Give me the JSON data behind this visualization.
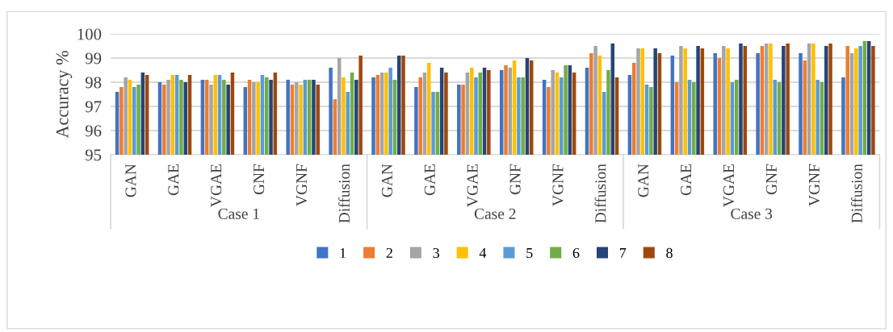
{
  "chart_data": {
    "type": "bar",
    "ylabel": "Accuracy %",
    "categories": [
      "GAN",
      "GAE",
      "VGAE",
      "GNF",
      "VGNF",
      "Diffusion",
      "GAN",
      "GAE",
      "VGAE",
      "GNF",
      "VGNF",
      "Diffusion",
      "GAN",
      "GAE",
      "VGAE",
      "GNF",
      "VGNF",
      "Diffusion"
    ],
    "annotations": [
      "Case 1",
      "Case 2",
      "Case 3"
    ],
    "series": [
      {
        "name": "1",
        "color": "#4472c4",
        "values": [
          97.6,
          98.0,
          98.1,
          97.8,
          98.1,
          98.6,
          98.2,
          97.8,
          97.9,
          98.5,
          98.1,
          98.6,
          98.3,
          99.1,
          99.2,
          99.2,
          99.2,
          98.2
        ]
      },
      {
        "name": "2",
        "color": "#ed7d31",
        "values": [
          97.8,
          97.9,
          98.1,
          98.1,
          97.9,
          97.3,
          98.3,
          98.2,
          97.9,
          98.7,
          97.8,
          99.2,
          98.8,
          98.0,
          99.0,
          99.5,
          98.9,
          99.5
        ]
      },
      {
        "name": "3",
        "color": "#a5a5a5",
        "values": [
          98.2,
          98.1,
          97.9,
          98.0,
          98.0,
          99.0,
          98.4,
          98.4,
          98.4,
          98.6,
          98.5,
          99.5,
          99.4,
          99.5,
          99.5,
          99.6,
          99.6,
          99.2
        ]
      },
      {
        "name": "4",
        "color": "#ffc000",
        "values": [
          98.1,
          98.3,
          98.3,
          98.0,
          97.9,
          98.2,
          98.4,
          98.8,
          98.6,
          98.9,
          98.4,
          99.1,
          99.4,
          99.4,
          99.4,
          99.6,
          99.6,
          99.4
        ]
      },
      {
        "name": "5",
        "color": "#5b9bd5",
        "values": [
          97.8,
          98.3,
          98.3,
          98.3,
          98.1,
          97.6,
          98.6,
          97.6,
          98.2,
          98.2,
          98.2,
          97.6,
          97.9,
          98.1,
          98.0,
          98.1,
          98.1,
          99.5
        ]
      },
      {
        "name": "6",
        "color": "#70ad47",
        "values": [
          97.9,
          98.1,
          98.1,
          98.2,
          98.1,
          98.4,
          98.1,
          97.6,
          98.4,
          98.2,
          98.7,
          98.5,
          97.8,
          98.0,
          98.1,
          98.0,
          98.0,
          99.7
        ]
      },
      {
        "name": "7",
        "color": "#264478",
        "values": [
          98.4,
          98.0,
          97.9,
          98.1,
          98.1,
          98.1,
          99.1,
          98.6,
          98.6,
          99.0,
          98.7,
          99.6,
          99.4,
          99.5,
          99.6,
          99.5,
          99.5,
          99.7
        ]
      },
      {
        "name": "8",
        "color": "#9e480e",
        "values": [
          98.3,
          98.3,
          98.4,
          98.4,
          97.9,
          99.1,
          99.1,
          98.4,
          98.5,
          98.9,
          98.4,
          98.2,
          99.2,
          99.4,
          99.5,
          99.6,
          99.6,
          99.5
        ]
      }
    ],
    "ylim": [
      95,
      100
    ],
    "yticks": [
      95,
      96,
      97,
      98,
      99,
      100
    ],
    "grid": "y",
    "legend": "bottom"
  }
}
